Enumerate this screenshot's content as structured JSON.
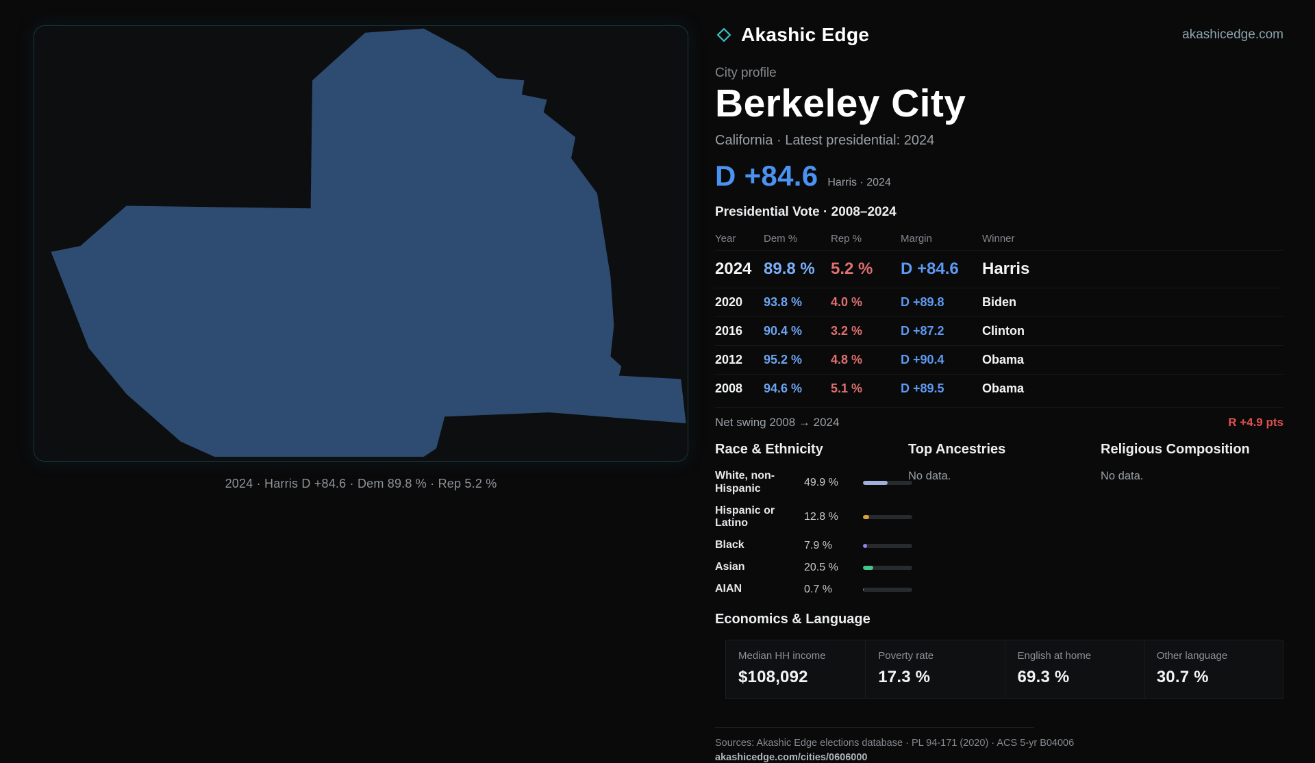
{
  "brand": {
    "name": "Akashic Edge",
    "site": "akashicedge.com"
  },
  "map": {
    "fill": "#2e4b72",
    "caption": "2024 · Harris D +84.6 · Dem 89.8 % · Rep 5.2 %"
  },
  "profile": {
    "kicker": "City profile",
    "title": "Berkeley City",
    "subtitle": "California · Latest presidential: 2024",
    "headline_margin": "D +84.6",
    "headline_note": "Harris · 2024"
  },
  "table": {
    "title": "Presidential Vote · 2008–2024",
    "headers": {
      "year": "Year",
      "dem": "Dem %",
      "rep": "Rep %",
      "margin": "Margin",
      "winner": "Winner"
    },
    "rows": [
      {
        "year": "2024",
        "dem": "89.8 %",
        "rep": "5.2 %",
        "margin": "D +84.6",
        "winner": "Harris"
      },
      {
        "year": "2020",
        "dem": "93.8 %",
        "rep": "4.0 %",
        "margin": "D +89.8",
        "winner": "Biden"
      },
      {
        "year": "2016",
        "dem": "90.4 %",
        "rep": "3.2 %",
        "margin": "D +87.2",
        "winner": "Clinton"
      },
      {
        "year": "2012",
        "dem": "95.2 %",
        "rep": "4.8 %",
        "margin": "D +90.4",
        "winner": "Obama"
      },
      {
        "year": "2008",
        "dem": "94.6 %",
        "rep": "5.1 %",
        "margin": "D +89.5",
        "winner": "Obama"
      }
    ],
    "net_swing_label": "Net swing 2008 → 2024",
    "net_swing_value": "R +4.9 pts"
  },
  "demographics": {
    "race_title": "Race & Ethnicity",
    "ancestries_title": "Top Ancestries",
    "religion_title": "Religious Composition",
    "no_data": "No data.",
    "race_rows": [
      {
        "label": "White, non-Hispanic",
        "value": "49.9 %",
        "pct": 49.9,
        "color": "#9db1dc"
      },
      {
        "label": "Hispanic or Latino",
        "value": "12.8 %",
        "pct": 12.8,
        "color": "#e09c3c"
      },
      {
        "label": "Black",
        "value": "7.9 %",
        "pct": 7.9,
        "color": "#9b7fe8"
      },
      {
        "label": "Asian",
        "value": "20.5 %",
        "pct": 20.5,
        "color": "#45c48f"
      },
      {
        "label": "AIAN",
        "value": "0.7 %",
        "pct": 0.7,
        "color": "#c96a5a"
      }
    ]
  },
  "economics": {
    "title": "Economics & Language",
    "stats": [
      {
        "label": "Median HH income",
        "value": "$108,092"
      },
      {
        "label": "Poverty rate",
        "value": "17.3 %"
      },
      {
        "label": "English at home",
        "value": "69.3 %"
      },
      {
        "label": "Other language",
        "value": "30.7 %"
      }
    ]
  },
  "footer": {
    "sources": "Sources: Akashic Edge elections database · PL 94-171 (2020) · ACS 5-yr B04006",
    "permalink": "akashicedge.com/cities/0606000"
  }
}
